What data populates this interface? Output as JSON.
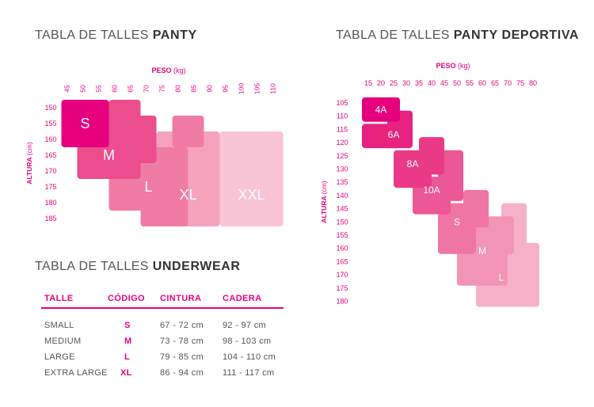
{
  "titles": {
    "panty_light": "TABLA DE TALLES ",
    "panty_bold": "PANTY",
    "dep_light": "TABLA DE TALLES ",
    "dep_bold": "PANTY DEPORTIVA",
    "under_light": "TABLA DE TALLES ",
    "under_bold": "UNDERWEAR"
  },
  "chart_data": [
    {
      "type": "heatmap",
      "title": "TABLA DE TALLES PANTY",
      "xlabel": "PESO",
      "xunit": "(kg)",
      "ylabel": "ALTURA",
      "yunit": "(cm)",
      "x": [
        45,
        50,
        55,
        60,
        65,
        70,
        75,
        80,
        85,
        90,
        95,
        100,
        105,
        110
      ],
      "y": [
        150,
        155,
        160,
        165,
        170,
        175,
        180,
        185
      ],
      "sizes": [
        {
          "name": "S",
          "color": "#e6007e"
        },
        {
          "name": "M",
          "color": "#ec4d8d"
        },
        {
          "name": "L",
          "color": "#f07ca5"
        },
        {
          "name": "XL",
          "color": "#f5a3bd"
        },
        {
          "name": "XXL",
          "color": "#f9c4d5"
        }
      ]
    },
    {
      "type": "heatmap",
      "title": "TABLA DE TALLES PANTY DEPORTIVA",
      "xlabel": "PESO",
      "xunit": "(kg)",
      "ylabel": "ALTURA",
      "yunit": "(cm)",
      "x": [
        15,
        20,
        25,
        30,
        35,
        40,
        45,
        50,
        55,
        60,
        65,
        70,
        75,
        80
      ],
      "y": [
        105,
        110,
        115,
        120,
        125,
        130,
        135,
        140,
        145,
        150,
        155,
        160,
        165,
        170,
        175,
        180
      ],
      "sizes": [
        {
          "name": "4A",
          "color": "#e6007e"
        },
        {
          "name": "6A",
          "color": "#e8227f"
        },
        {
          "name": "8A",
          "color": "#ea3a87"
        },
        {
          "name": "10A",
          "color": "#ec5795"
        },
        {
          "name": "S",
          "color": "#ef76a4"
        },
        {
          "name": "M",
          "color": "#f294b6"
        },
        {
          "name": "L",
          "color": "#f6b1c8"
        }
      ]
    }
  ],
  "underwear": {
    "headers": [
      "TALLE",
      "CÓDIGO",
      "CINTURA",
      "CADERA"
    ],
    "rows": [
      [
        "SMALL",
        "S",
        "67 - 72 cm",
        "92 - 97 cm"
      ],
      [
        "MEDIUM",
        "M",
        "73 - 78 cm",
        "98 - 103 cm"
      ],
      [
        "LARGE",
        "L",
        "79 - 85 cm",
        "104 - 110 cm"
      ],
      [
        "EXTRA LARGE",
        "XL",
        "86 - 94 cm",
        "111 - 117 cm"
      ]
    ]
  },
  "colors": {
    "accent": "#e6007e"
  }
}
